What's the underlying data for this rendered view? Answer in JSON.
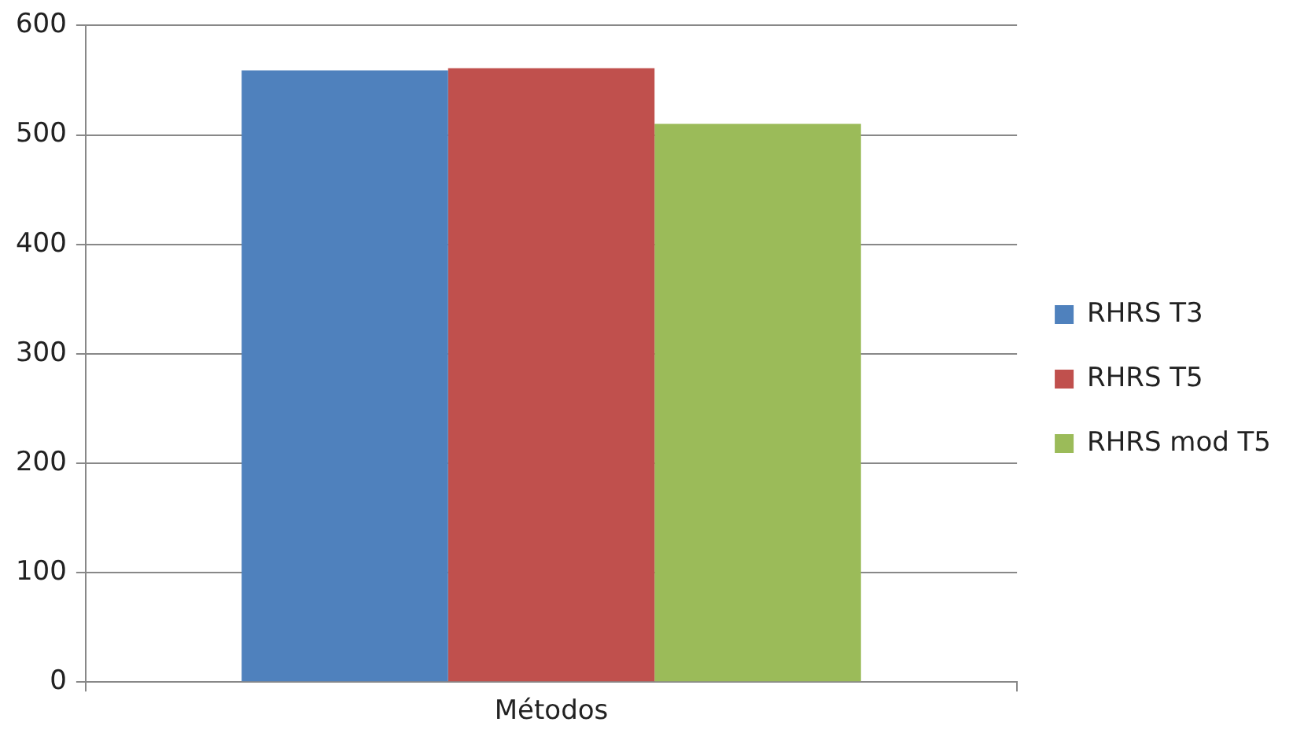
{
  "chart_data": {
    "type": "bar",
    "categories": [
      "Métodos"
    ],
    "series": [
      {
        "name": "RHRS T3",
        "color": "#4f81bd",
        "values": [
          559
        ]
      },
      {
        "name": "RHRS T5",
        "color": "#c0504d",
        "values": [
          561
        ]
      },
      {
        "name": "RHRS mod T5",
        "color": "#9bbb59",
        "values": [
          510
        ]
      }
    ],
    "ylim": [
      0,
      600
    ],
    "yticks": [
      0,
      100,
      200,
      300,
      400,
      500,
      600
    ],
    "grid": "y",
    "legend": "right"
  }
}
